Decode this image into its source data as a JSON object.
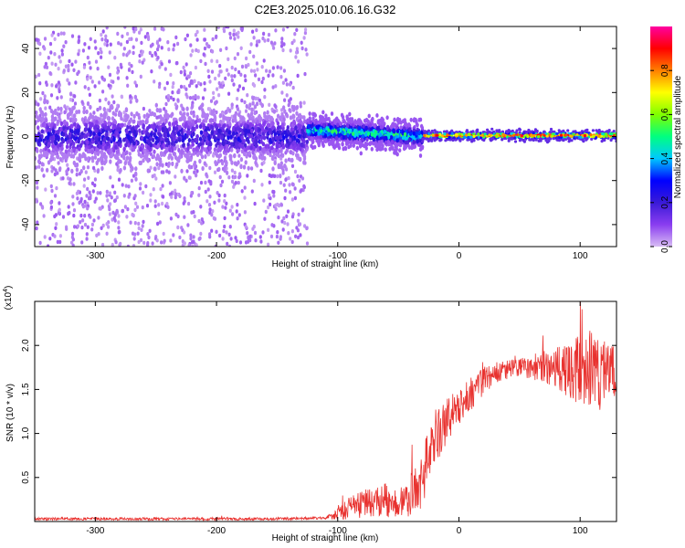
{
  "figure_title": "C2E3.2025.010.06.16.G32",
  "colors": {
    "signal_line": "#e8322f",
    "axis": "#000000",
    "colorbar_stops": [
      "#d8bcf4",
      "#8a3df0",
      "#3a1ad8",
      "#0000ff",
      "#00c8ff",
      "#00ff80",
      "#80ff00",
      "#ffff00",
      "#ff8000",
      "#ff0000",
      "#ff00a0"
    ]
  },
  "chart_data": [
    {
      "type": "heatmap",
      "title": "C2E3.2025.010.06.16.G32",
      "xlabel": "Height of straight line (km)",
      "ylabel": "Frequency (Hz)",
      "xlim": [
        -350,
        130
      ],
      "ylim": [
        -50,
        50
      ],
      "x_ticks": [
        -300,
        -200,
        -100,
        0,
        100
      ],
      "y_ticks": [
        -40,
        -20,
        0,
        20,
        40
      ],
      "colorbar": {
        "label": "Normalized spectral amplitude",
        "range": [
          0,
          1
        ],
        "ticks": [
          "0.0",
          "0.2",
          "0.4",
          "0.6",
          "0.8"
        ],
        "tick_values": [
          0,
          0.2,
          0.4,
          0.6,
          0.8
        ]
      },
      "regions": [
        {
          "x_range": [
            -350,
            -125
          ],
          "core_band_hz": [
            -10,
            10
          ],
          "scatter_hz": [
            -50,
            50
          ],
          "peak_amplitude": 0.25
        },
        {
          "x_range": [
            -125,
            -30
          ],
          "core_band_hz": [
            -5,
            8
          ],
          "center_trend_hz": [
            3,
            0
          ],
          "peak_amplitude": 0.55
        },
        {
          "x_range": [
            -30,
            130
          ],
          "core_band_hz": [
            -2,
            2
          ],
          "center_hz": 0.5,
          "peak_amplitude": 0.95
        }
      ]
    },
    {
      "type": "line",
      "xlabel": "Height of straight line (km)",
      "ylabel": "SNR (10 * v/v)",
      "y_multiplier": "(x10",
      "y_multiplier_exp": "4",
      "y_multiplier_close": ")",
      "xlim": [
        -350,
        130
      ],
      "ylim": [
        0,
        2.5
      ],
      "x_ticks": [
        -300,
        -200,
        -100,
        0,
        100
      ],
      "y_ticks": [
        "0.5",
        "1.0",
        "1.5",
        "2.0"
      ],
      "y_tick_values": [
        0.5,
        1.0,
        1.5,
        2.0
      ],
      "series": [
        {
          "name": "SNR",
          "x": [
            -350,
            -300,
            -250,
            -200,
            -150,
            -110,
            -100,
            -90,
            -80,
            -70,
            -60,
            -50,
            -40,
            -30,
            -25,
            -20,
            -15,
            -10,
            0,
            10,
            20,
            30,
            40,
            60,
            80,
            100,
            110,
            120,
            130
          ],
          "mean": [
            0.03,
            0.03,
            0.03,
            0.03,
            0.03,
            0.04,
            0.1,
            0.15,
            0.2,
            0.22,
            0.25,
            0.2,
            0.3,
            0.45,
            0.8,
            0.95,
            1.05,
            1.15,
            1.3,
            1.45,
            1.6,
            1.68,
            1.72,
            1.75,
            1.75,
            1.72,
            1.72,
            1.68,
            1.65
          ],
          "noise": [
            0.01,
            0.01,
            0.01,
            0.01,
            0.01,
            0.01,
            0.05,
            0.08,
            0.1,
            0.1,
            0.12,
            0.1,
            0.15,
            0.18,
            0.2,
            0.2,
            0.2,
            0.15,
            0.15,
            0.12,
            0.1,
            0.08,
            0.07,
            0.08,
            0.15,
            0.25,
            0.3,
            0.25,
            0.2
          ]
        }
      ]
    }
  ]
}
